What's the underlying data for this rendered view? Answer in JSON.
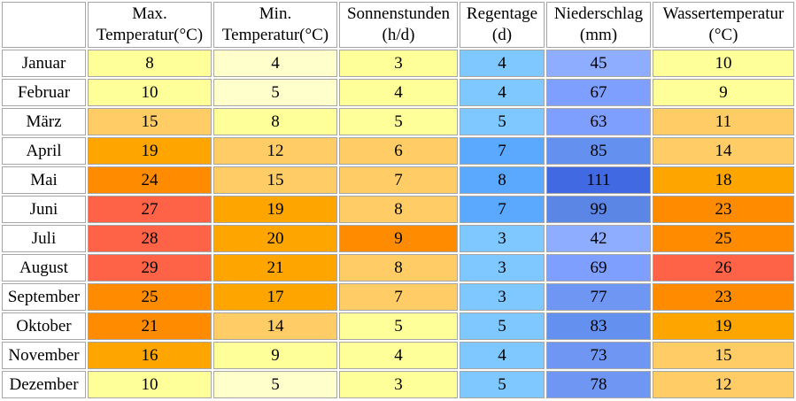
{
  "table": {
    "headers": [
      {
        "line1": "Max.",
        "line2": "Temperatur(°C)"
      },
      {
        "line1": "Min.",
        "line2": "Temperatur(°C)"
      },
      {
        "line1": "Sonnenstunden",
        "line2": "(h/d)"
      },
      {
        "line1": "Regentage",
        "line2": "(d)"
      },
      {
        "line1": "Niederschlag",
        "line2": "(mm)"
      },
      {
        "line1": "Wassertemperatur",
        "line2": "(°C)"
      }
    ],
    "rows": [
      {
        "month": "Januar",
        "values": [
          "8",
          "4",
          "3",
          "4",
          "45",
          "10"
        ],
        "colors": [
          "#ffff99",
          "#ffffcc",
          "#ffff99",
          "#7fc8ff",
          "#8fadff",
          "#ffff99"
        ]
      },
      {
        "month": "Februar",
        "values": [
          "10",
          "5",
          "4",
          "4",
          "67",
          "9"
        ],
        "colors": [
          "#ffff99",
          "#ffffcc",
          "#ffff99",
          "#7fc8ff",
          "#7f9fff",
          "#ffff99"
        ]
      },
      {
        "month": "März",
        "values": [
          "15",
          "8",
          "5",
          "5",
          "63",
          "11"
        ],
        "colors": [
          "#ffcc66",
          "#ffff99",
          "#ffff99",
          "#7fc8ff",
          "#7f9fff",
          "#ffcc66"
        ]
      },
      {
        "month": "April",
        "values": [
          "19",
          "12",
          "6",
          "7",
          "85",
          "14"
        ],
        "colors": [
          "#ffa500",
          "#ffcc66",
          "#ffcc66",
          "#5aa9ff",
          "#6490f0",
          "#ffcc66"
        ]
      },
      {
        "month": "Mai",
        "values": [
          "24",
          "15",
          "7",
          "8",
          "111",
          "18"
        ],
        "colors": [
          "#ff8c00",
          "#ffcc66",
          "#ffcc66",
          "#5aa9ff",
          "#4169e1",
          "#ffa500"
        ]
      },
      {
        "month": "Juni",
        "values": [
          "27",
          "19",
          "8",
          "7",
          "99",
          "23"
        ],
        "colors": [
          "#ff6347",
          "#ffa500",
          "#ffcc66",
          "#5aa9ff",
          "#5b86e6",
          "#ff8c00"
        ]
      },
      {
        "month": "Juli",
        "values": [
          "28",
          "20",
          "9",
          "3",
          "42",
          "25"
        ],
        "colors": [
          "#ff6347",
          "#ffa500",
          "#ff8c00",
          "#7fc8ff",
          "#8fadff",
          "#ff8c00"
        ]
      },
      {
        "month": "August",
        "values": [
          "29",
          "21",
          "8",
          "3",
          "69",
          "26"
        ],
        "colors": [
          "#ff6347",
          "#ffa500",
          "#ffcc66",
          "#7fc8ff",
          "#7f9fff",
          "#ff6347"
        ]
      },
      {
        "month": "September",
        "values": [
          "25",
          "17",
          "7",
          "3",
          "77",
          "23"
        ],
        "colors": [
          "#ff8c00",
          "#ffa500",
          "#ffcc66",
          "#7fc8ff",
          "#6f96f3",
          "#ff8c00"
        ]
      },
      {
        "month": "Oktober",
        "values": [
          "21",
          "14",
          "5",
          "5",
          "83",
          "19"
        ],
        "colors": [
          "#ff8c00",
          "#ffcc66",
          "#ffff99",
          "#7fc8ff",
          "#6490f0",
          "#ffa500"
        ]
      },
      {
        "month": "November",
        "values": [
          "16",
          "9",
          "4",
          "4",
          "73",
          "15"
        ],
        "colors": [
          "#ffa500",
          "#ffff99",
          "#ffff99",
          "#7fc8ff",
          "#6f96f3",
          "#ffcc66"
        ]
      },
      {
        "month": "Dezember",
        "values": [
          "10",
          "5",
          "3",
          "5",
          "78",
          "12"
        ],
        "colors": [
          "#ffff99",
          "#ffffcc",
          "#ffff99",
          "#7fc8ff",
          "#6f96f3",
          "#ffcc66"
        ]
      }
    ]
  }
}
